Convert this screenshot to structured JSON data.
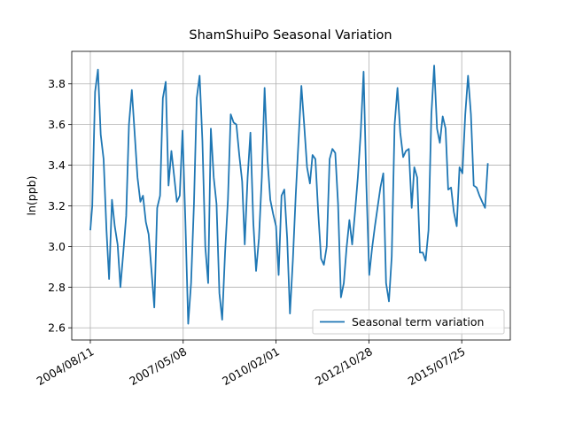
{
  "chart_data": {
    "type": "line",
    "title": "ShamShuiPo Seasonal Variation",
    "y_label": "ln(ppb)",
    "x": [
      "2004/08/11",
      "2004/09/01",
      "2004/10/01",
      "2004/11/01",
      "2004/12/01",
      "2005/01/01",
      "2005/02/01",
      "2005/03/01",
      "2005/04/01",
      "2005/05/01",
      "2005/06/01",
      "2005/07/01",
      "2005/08/01",
      "2005/09/01",
      "2005/10/01",
      "2005/11/01",
      "2005/12/01",
      "2006/01/01",
      "2006/02/01",
      "2006/03/01",
      "2006/04/01",
      "2006/05/01",
      "2006/06/01",
      "2006/07/01",
      "2006/08/01",
      "2006/09/01",
      "2006/10/01",
      "2006/11/01",
      "2006/12/01",
      "2007/01/01",
      "2007/02/01",
      "2007/03/01",
      "2007/04/01",
      "2007/05/01",
      "2007/06/01",
      "2007/07/01",
      "2007/08/01",
      "2007/09/01",
      "2007/10/01",
      "2007/11/01",
      "2007/12/01",
      "2008/01/01",
      "2008/02/01",
      "2008/03/01",
      "2008/04/01",
      "2008/05/01",
      "2008/06/01",
      "2008/07/01",
      "2008/08/01",
      "2008/09/01",
      "2008/10/01",
      "2008/11/01",
      "2008/12/01",
      "2009/01/01",
      "2009/02/01",
      "2009/03/01",
      "2009/04/01",
      "2009/05/01",
      "2009/06/01",
      "2009/07/01",
      "2009/08/01",
      "2009/09/01",
      "2009/10/01",
      "2009/11/01",
      "2009/12/01",
      "2010/01/01",
      "2010/02/01",
      "2010/03/01",
      "2010/04/01",
      "2010/05/01",
      "2010/06/01",
      "2010/07/01",
      "2010/08/01",
      "2010/09/01",
      "2010/10/01",
      "2010/11/01",
      "2010/12/01",
      "2011/01/01",
      "2011/02/01",
      "2011/03/01",
      "2011/04/01",
      "2011/05/01",
      "2011/06/01",
      "2011/07/01",
      "2011/08/01",
      "2011/09/01",
      "2011/10/01",
      "2011/11/01",
      "2011/12/01",
      "2012/01/01",
      "2012/02/01",
      "2012/03/01",
      "2012/04/01",
      "2012/05/01",
      "2012/06/01",
      "2012/07/01",
      "2012/08/01",
      "2012/09/01",
      "2012/10/01",
      "2012/11/01",
      "2012/12/01",
      "2013/01/01",
      "2013/02/01",
      "2013/03/01",
      "2013/04/01",
      "2013/05/01",
      "2013/06/01",
      "2013/07/01",
      "2013/08/01",
      "2013/09/01",
      "2013/10/01",
      "2013/11/01",
      "2013/12/01",
      "2014/01/01",
      "2014/02/01",
      "2014/03/01",
      "2014/04/01",
      "2014/05/01",
      "2014/06/01",
      "2014/07/01",
      "2014/08/01",
      "2014/09/01",
      "2014/10/01",
      "2014/11/01",
      "2014/12/01",
      "2015/01/01",
      "2015/02/01",
      "2015/03/01",
      "2015/04/01",
      "2015/05/01",
      "2015/06/01",
      "2015/07/01",
      "2015/08/01",
      "2015/09/01",
      "2015/10/01",
      "2015/11/01",
      "2015/12/01",
      "2016/01/01",
      "2016/02/01",
      "2016/03/01",
      "2016/04/01",
      "2016/05/01"
    ],
    "series": [
      {
        "name": "Seasonal term variation",
        "color": "#1f77b4",
        "values": [
          3.08,
          3.2,
          3.76,
          3.87,
          3.55,
          3.43,
          3.08,
          2.84,
          3.23,
          3.1,
          3.01,
          2.8,
          2.97,
          3.15,
          3.6,
          3.77,
          3.56,
          3.34,
          3.22,
          3.25,
          3.12,
          3.06,
          2.88,
          2.7,
          3.19,
          3.25,
          3.73,
          3.81,
          3.3,
          3.47,
          3.34,
          3.22,
          3.25,
          3.57,
          3.12,
          2.62,
          2.82,
          3.21,
          3.73,
          3.84,
          3.52,
          3.0,
          2.82,
          3.58,
          3.34,
          3.21,
          2.77,
          2.64,
          2.97,
          3.23,
          3.65,
          3.61,
          3.6,
          3.45,
          3.32,
          3.01,
          3.34,
          3.56,
          3.12,
          2.88,
          3.04,
          3.34,
          3.78,
          3.43,
          3.23,
          3.16,
          3.1,
          2.86,
          3.25,
          3.28,
          3.04,
          2.67,
          2.93,
          3.25,
          3.52,
          3.79,
          3.6,
          3.39,
          3.31,
          3.45,
          3.43,
          3.17,
          2.94,
          2.91,
          3.0,
          3.43,
          3.48,
          3.46,
          3.21,
          2.75,
          2.82,
          2.99,
          3.13,
          3.01,
          3.17,
          3.34,
          3.56,
          3.86,
          3.3,
          2.86,
          2.99,
          3.1,
          3.2,
          3.29,
          3.36,
          2.82,
          2.73,
          2.95,
          3.6,
          3.78,
          3.56,
          3.44,
          3.47,
          3.48,
          3.19,
          3.39,
          3.34,
          2.97,
          2.97,
          2.93,
          3.08,
          3.65,
          3.89,
          3.58,
          3.51,
          3.64,
          3.58,
          3.28,
          3.29,
          3.17,
          3.1,
          3.39,
          3.36,
          3.65,
          3.84,
          3.65,
          3.3,
          3.29,
          3.25,
          3.22,
          3.19,
          3.41
        ]
      }
    ],
    "xlim": [
      "2004/01/24",
      "2016/12/29"
    ],
    "xticks": [
      "2004/08/11",
      "2007/05/08",
      "2010/02/01",
      "2012/10/28",
      "2015/07/25"
    ],
    "ylim": [
      2.54,
      3.96
    ],
    "yticks": [
      {
        "value": 2.6,
        "label": "2.6"
      },
      {
        "value": 2.8,
        "label": "2.8"
      },
      {
        "value": 3.0,
        "label": "3.0"
      },
      {
        "value": 3.2,
        "label": "3.2"
      },
      {
        "value": 3.4,
        "label": "3.4"
      },
      {
        "value": 3.6,
        "label": "3.6"
      },
      {
        "value": 3.8,
        "label": "3.8"
      }
    ],
    "grid": true,
    "legend": "lower right"
  }
}
